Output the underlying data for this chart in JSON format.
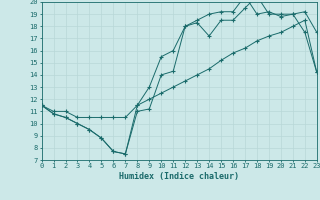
{
  "xlabel": "Humidex (Indice chaleur)",
  "xlim": [
    0,
    23
  ],
  "ylim": [
    7,
    20
  ],
  "xticks": [
    0,
    1,
    2,
    3,
    4,
    5,
    6,
    7,
    8,
    9,
    10,
    11,
    12,
    13,
    14,
    15,
    16,
    17,
    18,
    19,
    20,
    21,
    22,
    23
  ],
  "yticks": [
    7,
    8,
    9,
    10,
    11,
    12,
    13,
    14,
    15,
    16,
    17,
    18,
    19,
    20
  ],
  "bg_color": "#cce8e8",
  "grid_color": "#b8d8d8",
  "line_color": "#1a6b6b",
  "line1_x": [
    0,
    1,
    2,
    3,
    4,
    5,
    6,
    7,
    8,
    9,
    10,
    11,
    12,
    13,
    14,
    15,
    16,
    17,
    18,
    19,
    20,
    21,
    22,
    23
  ],
  "line1_y": [
    11.5,
    10.8,
    10.5,
    10.0,
    9.5,
    8.8,
    7.7,
    7.5,
    11.0,
    11.2,
    14.0,
    14.3,
    18.0,
    18.3,
    17.2,
    18.5,
    18.5,
    19.5,
    20.5,
    19.0,
    19.0,
    19.0,
    17.5,
    14.2
  ],
  "line2_x": [
    0,
    1,
    2,
    3,
    4,
    5,
    6,
    7,
    8,
    9,
    10,
    11,
    12,
    13,
    14,
    15,
    16,
    17,
    18,
    19,
    20,
    21,
    22,
    23
  ],
  "line2_y": [
    11.5,
    10.8,
    10.5,
    10.0,
    9.5,
    8.8,
    7.7,
    7.5,
    11.5,
    13.0,
    15.5,
    16.0,
    18.0,
    18.5,
    19.0,
    19.2,
    19.2,
    20.5,
    19.0,
    19.2,
    18.8,
    19.0,
    19.2,
    17.5
  ],
  "line3_x": [
    0,
    1,
    2,
    3,
    4,
    5,
    6,
    7,
    8,
    9,
    10,
    11,
    12,
    13,
    14,
    15,
    16,
    17,
    18,
    19,
    20,
    21,
    22,
    23
  ],
  "line3_y": [
    11.5,
    11.0,
    11.0,
    10.5,
    10.5,
    10.5,
    10.5,
    10.5,
    11.5,
    12.0,
    12.5,
    13.0,
    13.5,
    14.0,
    14.5,
    15.2,
    15.8,
    16.2,
    16.8,
    17.2,
    17.5,
    18.0,
    18.5,
    14.2
  ]
}
